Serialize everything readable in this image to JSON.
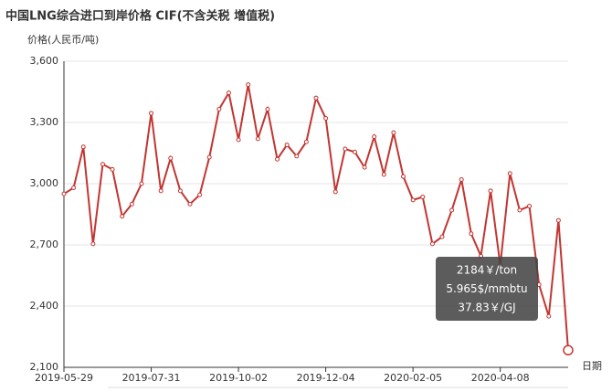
{
  "chart_data": {
    "type": "line",
    "title": "中国LNG综合进口到岸价格  CIF(不含关税  增值税)",
    "y_axis_label": "价格(人民币/吨)",
    "x_axis_label": "日期",
    "categories": [
      "2019-05-29",
      null,
      null,
      null,
      null,
      null,
      null,
      null,
      null,
      "2019-07-31",
      null,
      null,
      null,
      null,
      null,
      null,
      null,
      null,
      "2019-10-02",
      null,
      null,
      null,
      null,
      null,
      null,
      null,
      null,
      "2019-12-04",
      null,
      null,
      null,
      null,
      null,
      null,
      null,
      null,
      "2020-02-05",
      null,
      null,
      null,
      null,
      null,
      null,
      null,
      null,
      "2020-04-08",
      null,
      null,
      null,
      null,
      null,
      null,
      null
    ],
    "series": [
      {
        "name": "价格",
        "color": "#c23531",
        "values": [
          2950,
          2980,
          3180,
          2705,
          3095,
          3070,
          2840,
          2900,
          3000,
          3345,
          2965,
          3125,
          2965,
          2900,
          2945,
          3130,
          3365,
          3445,
          3215,
          3485,
          3220,
          3365,
          3120,
          3190,
          3135,
          3205,
          3420,
          3320,
          2960,
          3170,
          3155,
          3080,
          3230,
          3045,
          3250,
          3035,
          2920,
          2935,
          2705,
          2740,
          2870,
          3020,
          2755,
          2645,
          2965,
          2600,
          3050,
          2870,
          2890,
          2505,
          2350,
          2820,
          2184
        ]
      }
    ],
    "ylim": [
      2100,
      3600
    ],
    "yticks": [
      {
        "value": 2100,
        "label": "2,100"
      },
      {
        "value": 2400,
        "label": "2,400"
      },
      {
        "value": 2700,
        "label": "2,700"
      },
      {
        "value": 3000,
        "label": "3,000"
      },
      {
        "value": 3300,
        "label": "3,300"
      },
      {
        "value": 3600,
        "label": "3,600"
      }
    ],
    "grid": true,
    "tooltip": {
      "index": 52,
      "lines": [
        "2184￥/ton",
        "5.965$/mmbtu",
        "37.83￥/GJ"
      ]
    }
  }
}
